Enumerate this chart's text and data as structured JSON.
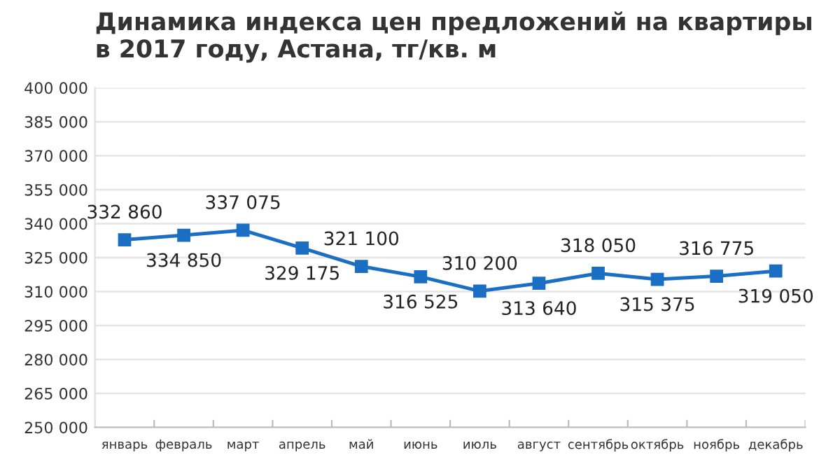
{
  "chart_data": {
    "type": "line",
    "title": "Динамика индекса цен предложений на квартиры\nв 2017 году, Астана, тг/кв. м",
    "categories": [
      "январь",
      "февраль",
      "март",
      "апрель",
      "май",
      "июнь",
      "июль",
      "август",
      "сентябрь",
      "октябрь",
      "ноябрь",
      "декабрь"
    ],
    "series": [
      {
        "color": "#1a6fc4",
        "values": [
          332860,
          334850,
          337075,
          329175,
          321100,
          316525,
          310200,
          313640,
          318050,
          315375,
          316775,
          319050
        ],
        "value_labels": [
          "332 860",
          "334 850",
          "337 075",
          "329 175",
          "321 100",
          "316 525",
          "310 200",
          "313 640",
          "318 050",
          "315 375",
          "316 775",
          "319 050"
        ]
      }
    ],
    "ylim": [
      250000,
      400000
    ],
    "yticks": [
      {
        "value": 250000,
        "label": "250 000"
      },
      {
        "value": 265000,
        "label": "265 000"
      },
      {
        "value": 280000,
        "label": "280 000"
      },
      {
        "value": 295000,
        "label": "295 000"
      },
      {
        "value": 310000,
        "label": "310 000"
      },
      {
        "value": 325000,
        "label": "325 000"
      },
      {
        "value": 340000,
        "label": "340 000"
      },
      {
        "value": 355000,
        "label": "355 000"
      },
      {
        "value": 370000,
        "label": "370 000"
      },
      {
        "value": 385000,
        "label": "385 000"
      },
      {
        "value": 400000,
        "label": "400 000"
      }
    ],
    "grid": "y",
    "marker": "square",
    "line_style": "solid"
  }
}
